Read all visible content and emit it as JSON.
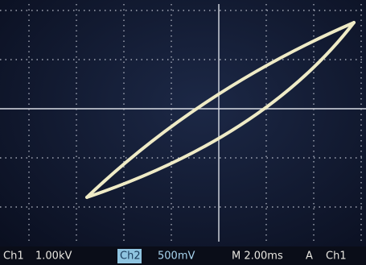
{
  "status_bar": {
    "ch1_label": "Ch1",
    "ch1_scale": "1.00kV",
    "ch2_label": "Ch2",
    "ch2_scale": "500mV",
    "timebase": "M 2.00ms",
    "trigger_mode": "A",
    "trigger_source": "Ch1"
  }
}
